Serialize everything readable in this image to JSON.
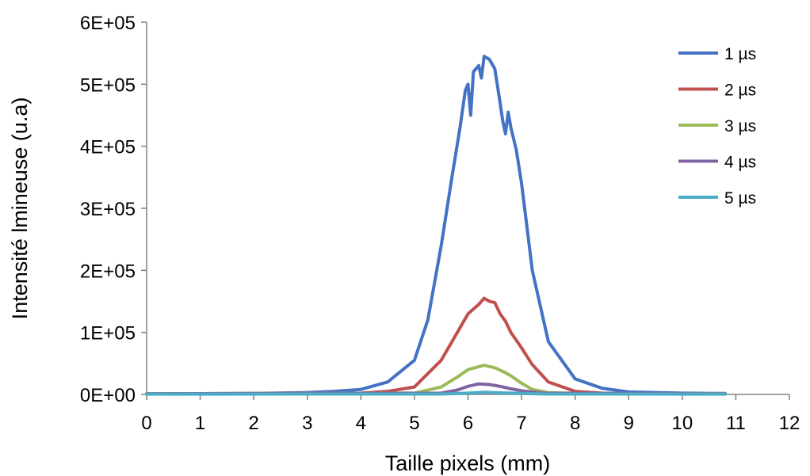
{
  "chart_data": {
    "type": "line",
    "title": "",
    "xlabel": "Taille pixels (mm)",
    "ylabel": "Intensité lmineuse (u.a)",
    "xlim": [
      0,
      12
    ],
    "ylim": [
      0,
      600000
    ],
    "x_ticks": [
      "0",
      "1",
      "2",
      "3",
      "4",
      "5",
      "6",
      "7",
      "8",
      "9",
      "10",
      "11",
      "12"
    ],
    "y_ticks": [
      "0E+00",
      "1E+05",
      "2E+05",
      "3E+05",
      "4E+05",
      "5E+05",
      "6E+05"
    ],
    "grid": false,
    "legend_position": "top-right",
    "series": [
      {
        "name": "1 µs",
        "color": "#4472C4",
        "x": [
          0,
          2,
          3,
          3.5,
          4,
          4.5,
          5,
          5.25,
          5.5,
          5.7,
          5.85,
          5.95,
          6.0,
          6.05,
          6.1,
          6.2,
          6.25,
          6.3,
          6.4,
          6.5,
          6.6,
          6.65,
          6.7,
          6.75,
          6.8,
          6.9,
          7.0,
          7.2,
          7.5,
          8.0,
          8.5,
          9.0,
          10.0,
          10.8
        ],
        "y": [
          1000,
          1500,
          3000,
          5000,
          8000,
          20000,
          55000,
          120000,
          240000,
          350000,
          430000,
          490000,
          500000,
          450000,
          520000,
          530000,
          510000,
          545000,
          540000,
          525000,
          470000,
          440000,
          420000,
          455000,
          430000,
          395000,
          340000,
          200000,
          85000,
          25000,
          10000,
          4000,
          2000,
          1500
        ]
      },
      {
        "name": "2 µs",
        "color": "#C0504D",
        "x": [
          0,
          4,
          4.5,
          5,
          5.5,
          5.8,
          6.0,
          6.2,
          6.3,
          6.4,
          6.5,
          6.6,
          6.7,
          6.8,
          7.0,
          7.2,
          7.5,
          8.0,
          8.5,
          9.0,
          10.8
        ],
        "y": [
          1000,
          2000,
          5000,
          12000,
          55000,
          100000,
          130000,
          145000,
          155000,
          150000,
          148000,
          130000,
          118000,
          100000,
          75000,
          48000,
          20000,
          5000,
          2000,
          1200,
          1000
        ]
      },
      {
        "name": "3 µs",
        "color": "#9BBB59",
        "x": [
          0,
          5,
          5.5,
          5.8,
          6.0,
          6.3,
          6.5,
          6.7,
          6.8,
          7.0,
          7.2,
          7.5,
          8.0,
          10.8
        ],
        "y": [
          1000,
          2000,
          12000,
          28000,
          40000,
          47000,
          43000,
          35000,
          30000,
          18000,
          8000,
          3000,
          1500,
          1000
        ]
      },
      {
        "name": "4 µs",
        "color": "#8064A2",
        "x": [
          0,
          5.5,
          5.8,
          6.0,
          6.2,
          6.4,
          6.6,
          6.8,
          7.0,
          7.4,
          10.8
        ],
        "y": [
          1000,
          2000,
          7000,
          13000,
          17000,
          16000,
          13000,
          9000,
          6000,
          2000,
          1000
        ]
      },
      {
        "name": "5 µs",
        "color": "#4BACC6",
        "x": [
          0,
          5.5,
          6.0,
          6.3,
          6.6,
          7.0,
          7.5,
          10.8
        ],
        "y": [
          500,
          600,
          2000,
          3500,
          2500,
          1500,
          600,
          500
        ]
      }
    ]
  }
}
